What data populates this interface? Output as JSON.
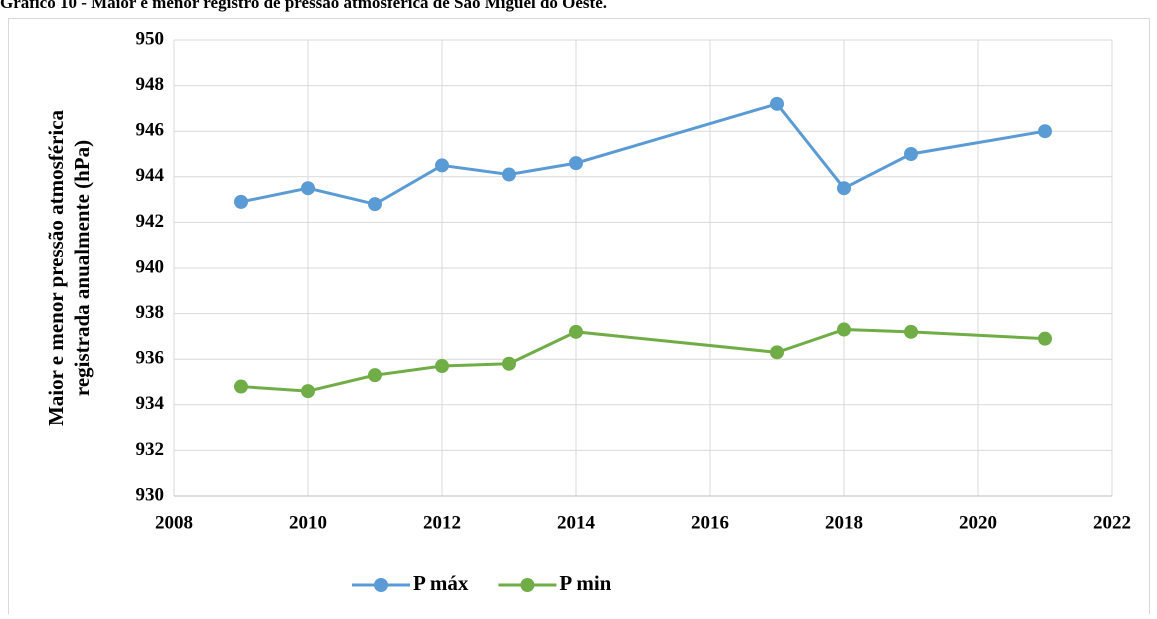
{
  "chart_data": {
    "type": "line",
    "title": "Gráfico 10 - Maior e menor registro de pressão atmosférica de São Miguel do Oeste.",
    "y_label": [
      "Maior e menor pressão atmosférica",
      "registrada anualmente (hPa)"
    ],
    "x": [
      2009,
      2010,
      2011,
      2012,
      2013,
      2014,
      2017,
      2018,
      2019,
      2021
    ],
    "series": [
      {
        "name": "P máx",
        "color": "#5b9bd5",
        "values": [
          942.9,
          943.5,
          942.8,
          944.5,
          944.1,
          944.6,
          947.2,
          943.5,
          945.0,
          946.0
        ]
      },
      {
        "name": "P min",
        "color": "#70ad47",
        "values": [
          934.8,
          934.6,
          935.3,
          935.7,
          935.8,
          937.2,
          936.3,
          937.3,
          937.2,
          936.9
        ]
      }
    ],
    "xlim": [
      2008,
      2022
    ],
    "xticks": [
      2008,
      2010,
      2012,
      2014,
      2016,
      2018,
      2020,
      2022
    ],
    "ylim": [
      930,
      950
    ],
    "yticks": [
      930,
      932,
      934,
      936,
      938,
      940,
      942,
      944,
      946,
      948,
      950
    ],
    "grid": true,
    "legend": "bottom"
  }
}
